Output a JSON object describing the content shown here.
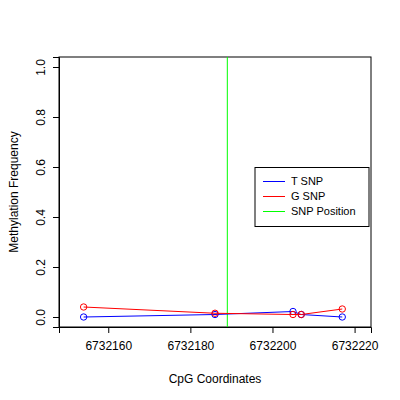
{
  "chart_data": {
    "type": "line",
    "x_label": "CpG Coordinates",
    "y_label": "Methylation Frequency",
    "x": [
      6732154,
      6732186,
      6732205,
      6732207,
      6732217
    ],
    "series": [
      {
        "name": "T SNP",
        "color": "#0000ff",
        "marker": "circle-open",
        "values": [
          0.0,
          0.01,
          0.022,
          0.01,
          0.0
        ]
      },
      {
        "name": "G SNP",
        "color": "#ff0000",
        "marker": "circle-open",
        "values": [
          0.04,
          0.015,
          0.01,
          0.01,
          0.032
        ]
      }
    ],
    "vlines": [
      {
        "name": "SNP Position",
        "color": "#00ff00",
        "value": 6732189
      }
    ],
    "xlim": [
      6732148,
      6732224
    ],
    "xticks": [
      6732160,
      6732180,
      6732200,
      6732220
    ],
    "ylim": [
      -0.04,
      1.04
    ],
    "yticks": [
      {
        "value": 0,
        "label": "0.0"
      },
      0.2,
      0.4,
      0.6,
      0.8,
      {
        "value": 1,
        "label": "1.0"
      }
    ],
    "legend": "right"
  }
}
